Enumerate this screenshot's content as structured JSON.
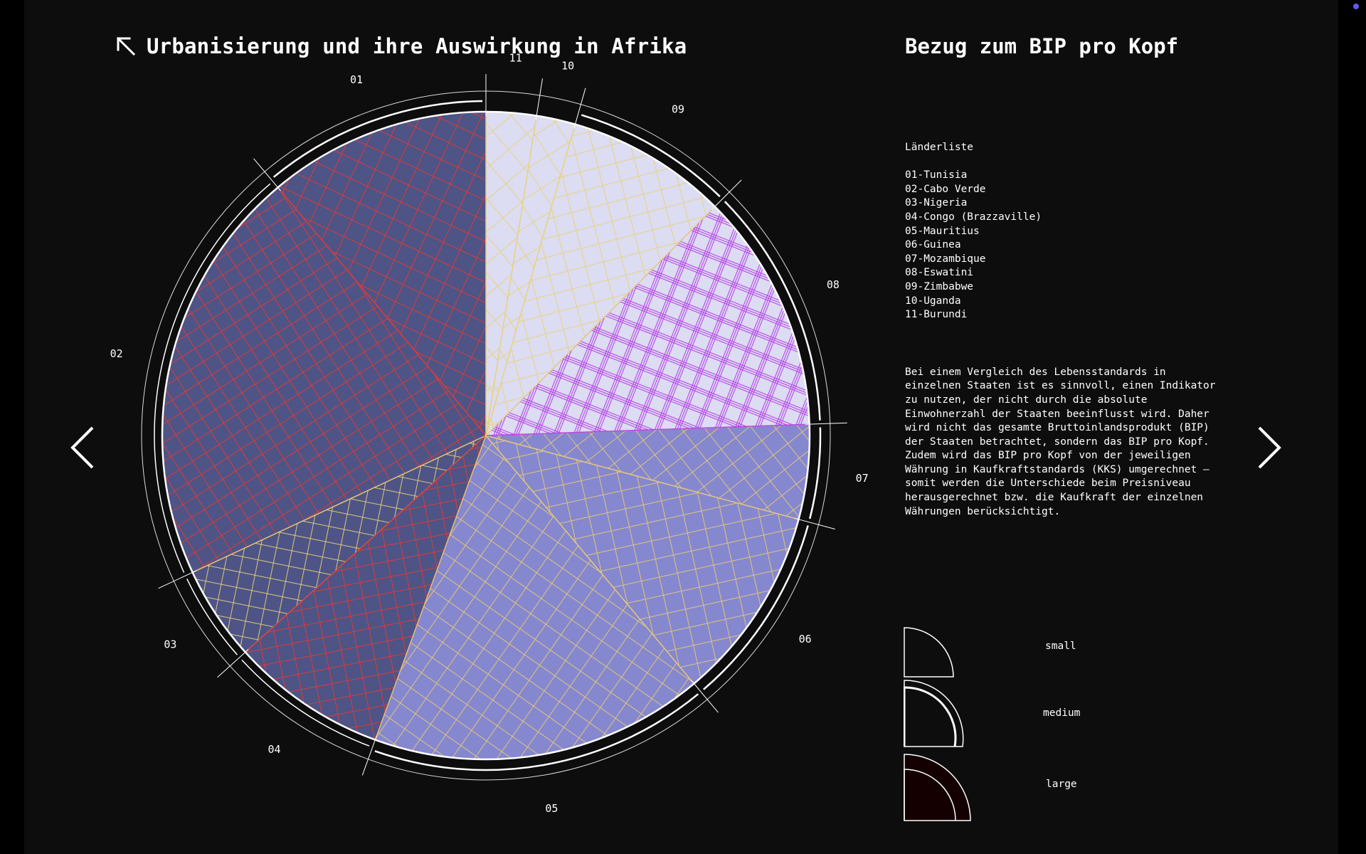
{
  "header": {
    "title": "Urbanisierung und ihre Auswirkung in Afrika",
    "back_icon": "arrow-up-left-icon"
  },
  "side": {
    "title": "Bezug zum BIP pro Kopf",
    "list_heading": "Länderliste",
    "countries": [
      "01-Tunisia",
      "02-Cabo Verde",
      "03-Nigeria",
      "04-Congo (Brazzaville)",
      "05-Mauritius",
      "06-Guinea",
      "07-Mozambique",
      "08-Eswatini",
      "09-Zimbabwe",
      "10-Uganda",
      "11-Burundi"
    ],
    "description": "Bei einem Vergleich des Lebensstandards in einzelnen Staaten ist es sinnvoll, einen Indikator zu nutzen, der nicht durch die absolute Einwohnerzahl der Staaten beeinflusst wird. Daher wird nicht das gesamte Bruttoinlandsprodukt (BIP) der Staaten betrachtet, sondern das BIP pro Kopf. Zudem wird das BIP pro Kopf von der jeweiligen Währung in Kaufkraftstandards (KKS) umgerechnet – somit werden die Unterschiede beim Preisniveau herausgerechnet bzw. die Kaufkraft der einzelnen Währungen berücksichtigt."
  },
  "legend": {
    "items": [
      {
        "label": "small",
        "level": "small"
      },
      {
        "label": "medium",
        "level": "medium"
      },
      {
        "label": "large",
        "level": "large"
      }
    ]
  },
  "nav": {
    "prev_icon": "chevron-left-icon",
    "next_icon": "chevron-right-icon"
  },
  "chart_data": {
    "type": "pie",
    "title": "Urbanisierung und ihre Auswirkung in Afrika",
    "unit": "degrees of arc",
    "categories": [
      "01",
      "02",
      "03",
      "04",
      "05",
      "06",
      "07",
      "08",
      "09",
      "10",
      "11"
    ],
    "countries": [
      "Tunisia",
      "Cabo Verde",
      "Nigeria",
      "Congo (Brazzaville)",
      "Mauritius",
      "Guinea",
      "Mozambique",
      "Eswatini",
      "Zimbabwe",
      "Uganda",
      "Burundi"
    ],
    "slices": [
      {
        "id": "01",
        "country": "Tunisia",
        "start": 320,
        "end": 360,
        "fill": "#4e5486",
        "hatch": "#e53935",
        "gdp": "medium"
      },
      {
        "id": "02",
        "country": "Cabo Verde",
        "start": 245,
        "end": 320,
        "fill": "#4e5486",
        "hatch": "#e53935",
        "gdp": "large"
      },
      {
        "id": "03",
        "country": "Nigeria",
        "start": 228,
        "end": 245,
        "fill": "#4e5486",
        "hatch": "#e8d27a",
        "gdp": "large"
      },
      {
        "id": "04",
        "country": "Congo (Brazzaville)",
        "start": 200,
        "end": 228,
        "fill": "#4e5486",
        "hatch": "#e53935",
        "gdp": "large"
      },
      {
        "id": "05",
        "country": "Mauritius",
        "start": 140,
        "end": 200,
        "fill": "#8588cf",
        "hatch": "#e8c878",
        "gdp": "medium"
      },
      {
        "id": "06",
        "country": "Guinea",
        "start": 105,
        "end": 140,
        "fill": "#8588cf",
        "hatch": "#e8c878",
        "gdp": "medium"
      },
      {
        "id": "07",
        "country": "Mozambique",
        "start": 88,
        "end": 105,
        "fill": "#8588cf",
        "hatch": "#e8c878",
        "gdp": "medium"
      },
      {
        "id": "08",
        "country": "Eswatini",
        "start": 45,
        "end": 88,
        "fill": "#dcdcf2",
        "hatch": "#b43ce6",
        "gdp": "medium"
      },
      {
        "id": "09",
        "country": "Zimbabwe",
        "start": 16,
        "end": 45,
        "fill": "#dcdcf2",
        "hatch": "#e8d27a",
        "gdp": "medium"
      },
      {
        "id": "10",
        "country": "Uganda",
        "start": 9,
        "end": 16,
        "fill": "#dcdcf2",
        "hatch": "#e8d27a",
        "gdp": "small"
      },
      {
        "id": "11",
        "country": "Burundi",
        "start": 0,
        "end": 9,
        "fill": "#dcdcf2",
        "hatch": "#e8d27a",
        "gdp": "small"
      }
    ],
    "legend_title": "Bezug zum BIP pro Kopf",
    "legend": [
      "small",
      "medium",
      "large"
    ]
  }
}
